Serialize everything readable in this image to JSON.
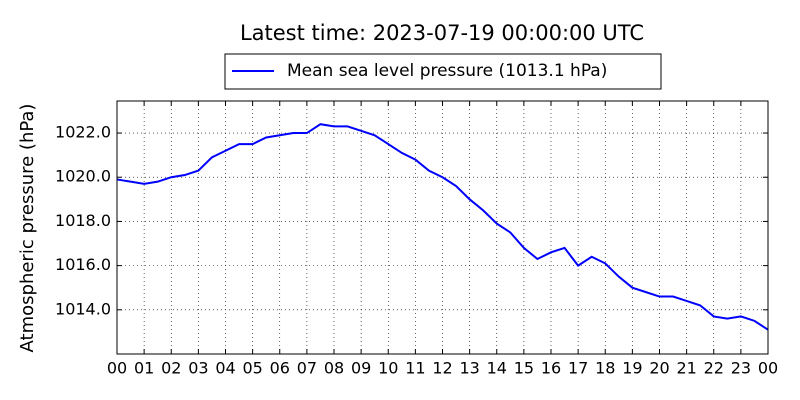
{
  "chart_data": {
    "type": "line",
    "title": "Latest time: 2023-07-19 00:00:00 UTC",
    "ylabel": "Atmospheric pressure (hPa)",
    "x": [
      0,
      0.5,
      1,
      1.5,
      2,
      2.5,
      3,
      3.5,
      4,
      4.5,
      5,
      5.5,
      6,
      6.5,
      7,
      7.5,
      8,
      8.5,
      9,
      9.5,
      10,
      10.5,
      11,
      11.5,
      12,
      12.5,
      13,
      13.5,
      14,
      14.5,
      15,
      15.5,
      16,
      16.5,
      17,
      17.5,
      18,
      18.5,
      19,
      19.5,
      20,
      20.5,
      21,
      21.5,
      22,
      22.5,
      23,
      23.5,
      24
    ],
    "series": [
      {
        "name": "Mean sea level pressure (1013.1 hPa)",
        "color": "#0000ff",
        "values": [
          1019.9,
          1019.8,
          1019.7,
          1019.8,
          1020.0,
          1020.1,
          1020.3,
          1020.9,
          1021.2,
          1021.5,
          1021.5,
          1021.8,
          1021.9,
          1022.0,
          1022.0,
          1022.4,
          1022.3,
          1022.3,
          1022.1,
          1021.9,
          1021.5,
          1021.1,
          1020.8,
          1020.3,
          1020.0,
          1019.6,
          1019.0,
          1018.5,
          1017.9,
          1017.5,
          1016.8,
          1016.3,
          1016.6,
          1016.8,
          1016.0,
          1016.4,
          1016.1,
          1015.5,
          1015.0,
          1014.8,
          1014.6,
          1014.6,
          1014.4,
          1014.2,
          1013.7,
          1013.6,
          1013.7,
          1013.5,
          1013.1
        ]
      }
    ],
    "xlim": [
      0,
      24
    ],
    "xticks": [
      {
        "value": 0,
        "label": "00"
      },
      {
        "value": 1,
        "label": "01"
      },
      {
        "value": 2,
        "label": "02"
      },
      {
        "value": 3,
        "label": "03"
      },
      {
        "value": 4,
        "label": "04"
      },
      {
        "value": 5,
        "label": "05"
      },
      {
        "value": 6,
        "label": "06"
      },
      {
        "value": 7,
        "label": "07"
      },
      {
        "value": 8,
        "label": "08"
      },
      {
        "value": 9,
        "label": "09"
      },
      {
        "value": 10,
        "label": "10"
      },
      {
        "value": 11,
        "label": "11"
      },
      {
        "value": 12,
        "label": "12"
      },
      {
        "value": 13,
        "label": "13"
      },
      {
        "value": 14,
        "label": "14"
      },
      {
        "value": 15,
        "label": "15"
      },
      {
        "value": 16,
        "label": "16"
      },
      {
        "value": 17,
        "label": "17"
      },
      {
        "value": 18,
        "label": "18"
      },
      {
        "value": 19,
        "label": "19"
      },
      {
        "value": 20,
        "label": "20"
      },
      {
        "value": 21,
        "label": "21"
      },
      {
        "value": 22,
        "label": "22"
      },
      {
        "value": 23,
        "label": "23"
      },
      {
        "value": 24,
        "label": "00"
      }
    ],
    "ylim": [
      1012.0,
      1023.45
    ],
    "yticks": [
      {
        "value": 1014,
        "label": "1014.0"
      },
      {
        "value": 1016,
        "label": "1016.0"
      },
      {
        "value": 1018,
        "label": "1018.0"
      },
      {
        "value": 1020,
        "label": "1020.0"
      },
      {
        "value": 1022,
        "label": "1022.0"
      }
    ],
    "grid": true,
    "legend": "top"
  }
}
